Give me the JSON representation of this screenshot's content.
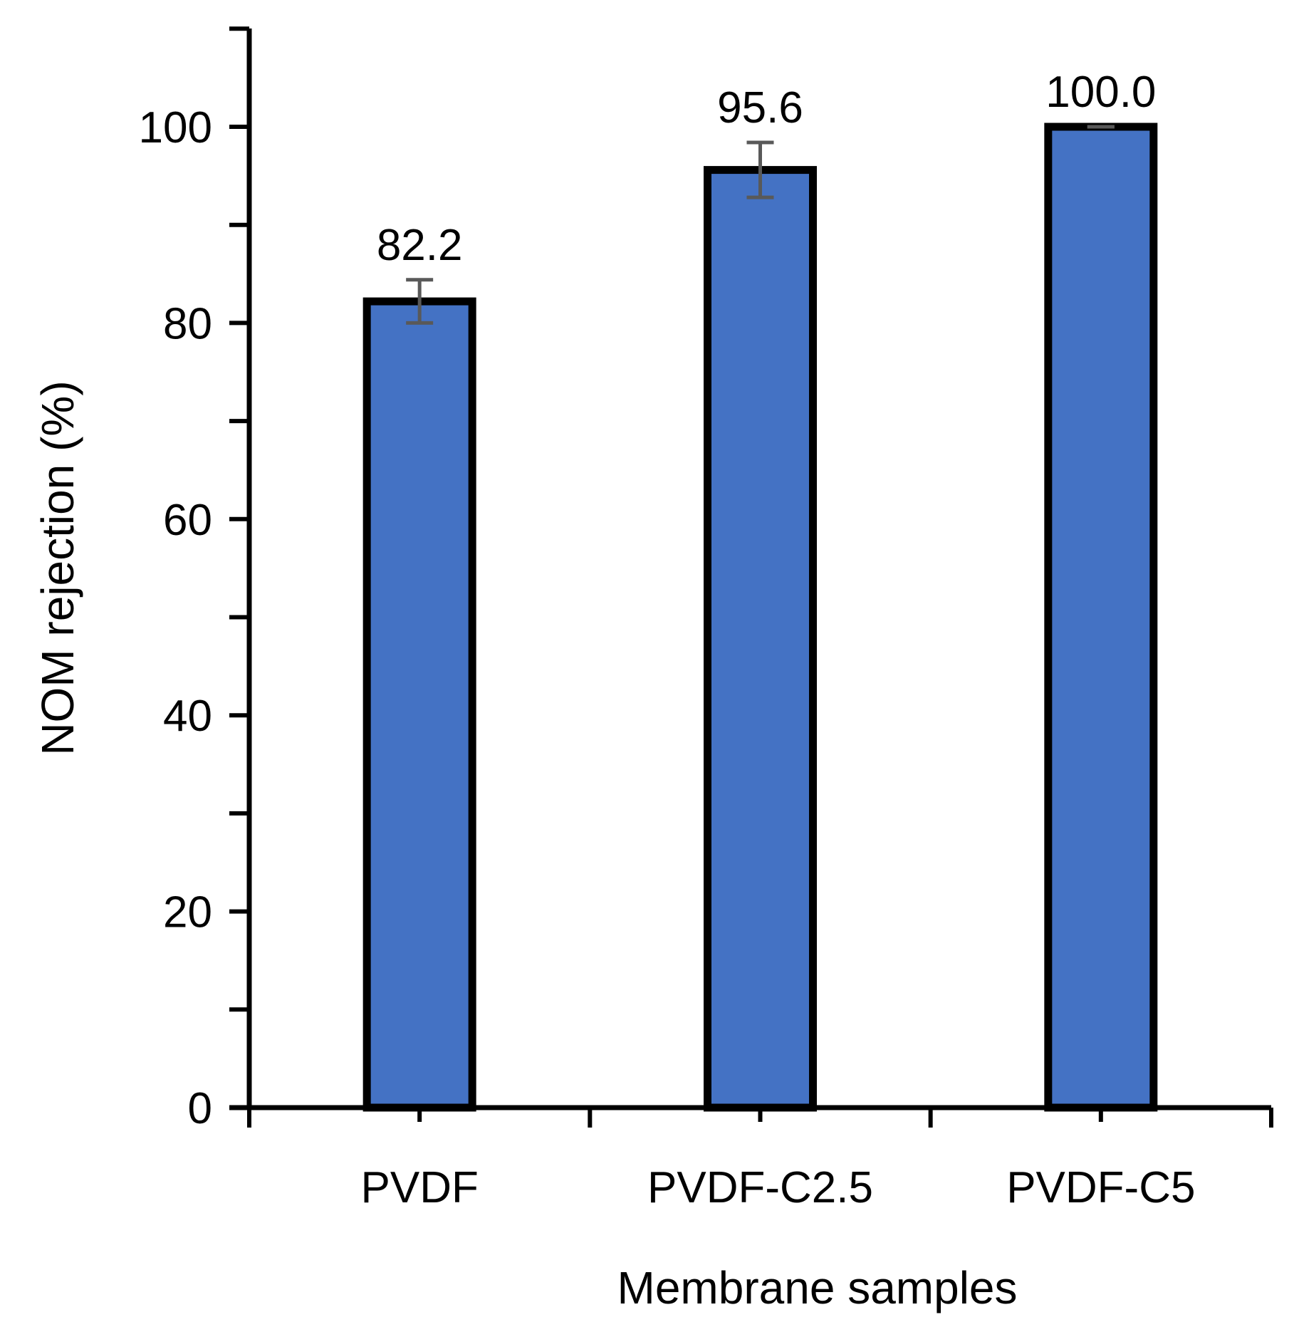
{
  "chart_data": {
    "type": "bar",
    "title": "",
    "xlabel": "Membrane samples",
    "ylabel": "NOM rejection (%)",
    "categories": [
      "PVDF",
      "PVDF-C2.5",
      "PVDF-C5"
    ],
    "series": [
      {
        "name": "NOM rejection",
        "values": [
          82.2,
          95.6,
          100.0
        ],
        "errors": [
          2.2,
          2.8,
          0.0
        ],
        "data_labels": [
          "82.2",
          "95.6",
          "100.0"
        ]
      }
    ],
    "ylim": [
      0,
      110
    ],
    "yticks": [
      0,
      20,
      40,
      60,
      80,
      100
    ],
    "ytick_labels": [
      "0",
      "20",
      "40",
      "60",
      "80",
      "100"
    ],
    "yminor_step": 10,
    "grid": false,
    "legend": "none",
    "colors": {
      "bar_fill": "#4472C4",
      "bar_edge": "#000000",
      "error_bar": "#595959",
      "axis": "#000000"
    }
  }
}
